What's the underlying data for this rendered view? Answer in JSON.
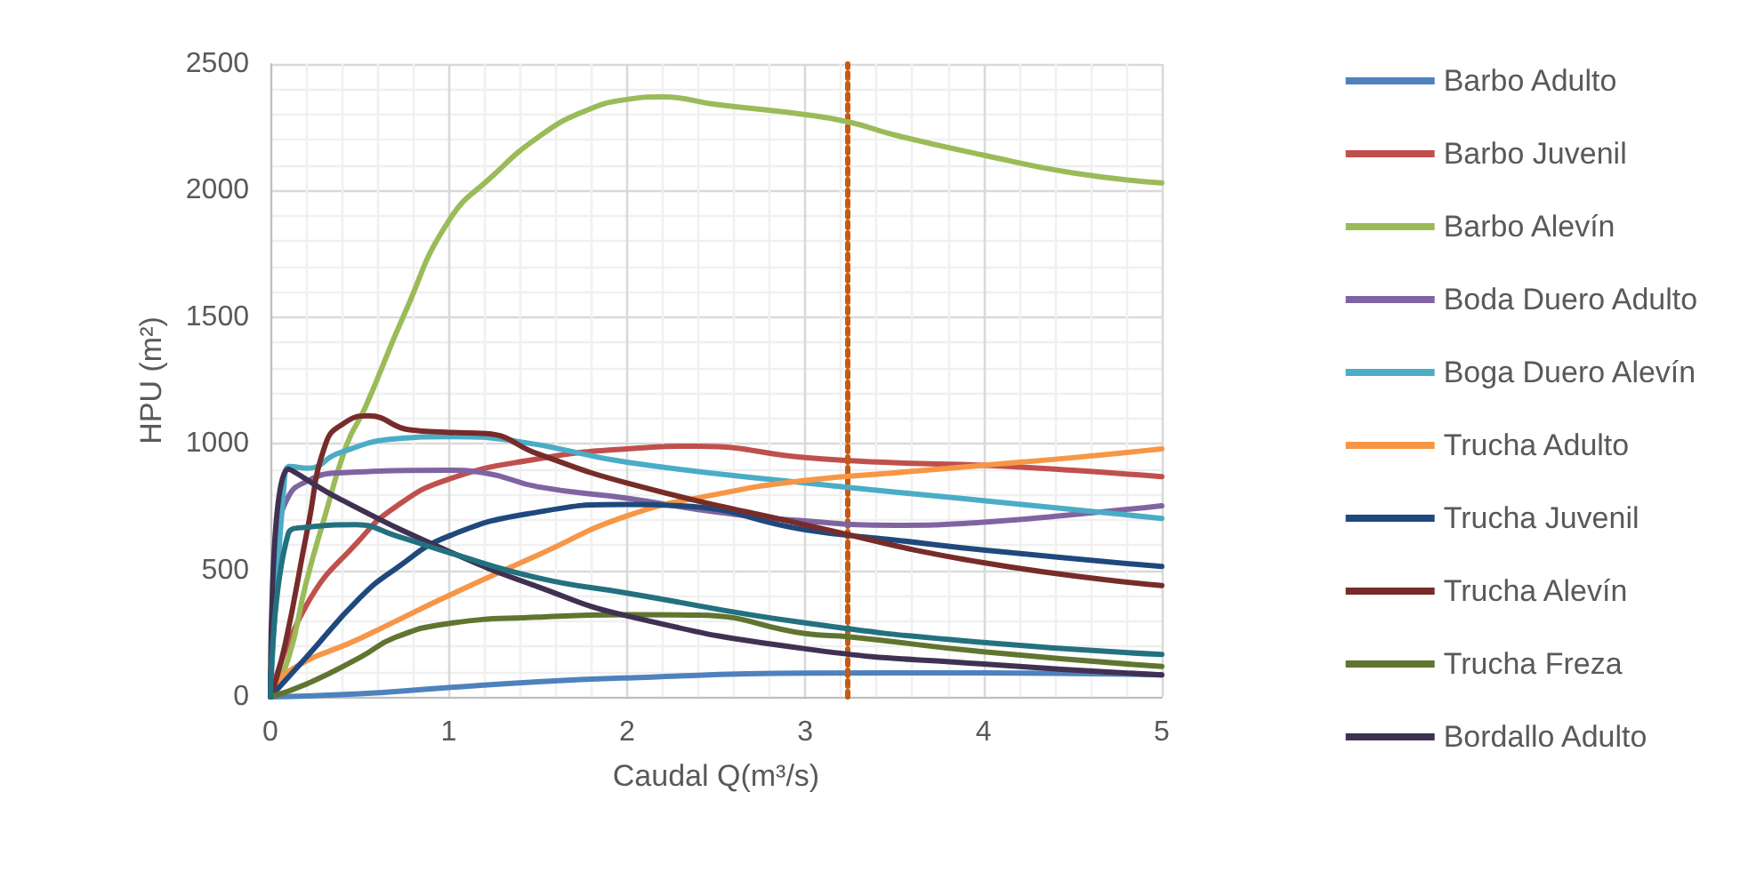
{
  "chart_data": {
    "type": "line",
    "xlabel": "Caudal Q(m³/s)",
    "ylabel": "HPU (m²)",
    "xlim": [
      0,
      5
    ],
    "xticks": [
      0,
      1,
      2,
      3,
      4,
      5
    ],
    "ylim": [
      0,
      2500
    ],
    "yticks": [
      0,
      500,
      1000,
      1500,
      2000,
      2500
    ],
    "grid": true,
    "legend": "right",
    "marker": "none",
    "line_style": "solid",
    "ref_lines": [
      {
        "axis": "x",
        "value": 3.24,
        "color": "#c55a11",
        "line_style": "dotted"
      }
    ],
    "series": [
      {
        "name": "Barbo Adulto",
        "color": "#4f81bd",
        "x": [
          0,
          0.5,
          1,
          1.5,
          2,
          3,
          4,
          5
        ],
        "values": [
          0,
          12,
          37,
          60,
          75,
          94,
          95,
          87
        ]
      },
      {
        "name": "Barbo Juvenil",
        "color": "#c0504d",
        "x": [
          0,
          0.2,
          0.5,
          0.7,
          1,
          1.5,
          2,
          2.4,
          3,
          3.5,
          4,
          4.5,
          5
        ],
        "values": [
          0,
          360,
          620,
          750,
          860,
          940,
          980,
          990,
          945,
          925,
          915,
          895,
          870
        ]
      },
      {
        "name": "Barbo Alevín",
        "color": "#9bbb59",
        "x": [
          0,
          0.1,
          0.2,
          0.3,
          0.43,
          0.53,
          0.75,
          1,
          1.25,
          1.5,
          1.75,
          2,
          2.2,
          2.5,
          3,
          3.25,
          3.5,
          4,
          4.5,
          5
        ],
        "values": [
          0,
          150,
          450,
          700,
          1000,
          1140,
          1510,
          1880,
          2060,
          2210,
          2310,
          2360,
          2370,
          2340,
          2300,
          2270,
          2220,
          2140,
          2070,
          2030
        ]
      },
      {
        "name": "Boda Duero Adulto",
        "color": "#8064a2",
        "x": [
          0,
          0.05,
          0.1,
          0.2,
          0.38,
          1,
          1.2,
          1.5,
          2,
          2.5,
          3,
          3.5,
          4,
          4.5,
          5
        ],
        "values": [
          0,
          650,
          790,
          850,
          885,
          895,
          885,
          830,
          785,
          730,
          695,
          678,
          690,
          720,
          755
        ]
      },
      {
        "name": "Boga Duero Alevín",
        "color": "#4bacc6",
        "x": [
          0,
          0.08,
          0.11,
          0.21,
          0.38,
          0.71,
          1,
          1.38,
          2,
          3,
          4,
          5
        ],
        "values": [
          0,
          870,
          910,
          903,
          962,
          1020,
          1028,
          1010,
          927,
          845,
          775,
          705
        ]
      },
      {
        "name": "Trucha Adulto",
        "color": "#f79646",
        "x": [
          0,
          0.1,
          0.5,
          1,
          1.5,
          2,
          2.5,
          3,
          3.5,
          4,
          4.5,
          5
        ],
        "values": [
          0,
          100,
          230,
          400,
          560,
          715,
          800,
          855,
          885,
          915,
          945,
          980
        ]
      },
      {
        "name": "Trucha Juvenil",
        "color": "#1f497d",
        "x": [
          0,
          0.2,
          0.5,
          0.7,
          1,
          1.5,
          2,
          2.3,
          3,
          3.5,
          4,
          5
        ],
        "values": [
          0,
          155,
          390,
          505,
          635,
          730,
          760,
          755,
          660,
          620,
          580,
          515
        ]
      },
      {
        "name": "Trucha Alevín",
        "color": "#772c2a",
        "x": [
          0,
          0.08,
          0.21,
          0.31,
          0.41,
          0.55,
          0.78,
          1,
          1.21,
          1.5,
          2,
          3,
          4,
          5
        ],
        "values": [
          0,
          200,
          670,
          1000,
          1080,
          1110,
          1055,
          1045,
          1040,
          960,
          845,
          680,
          530,
          440
        ]
      },
      {
        "name": "Trucha Freza",
        "color": "#5f7530",
        "x": [
          0,
          0.2,
          0.5,
          0.7,
          1,
          1.5,
          2,
          2.4,
          3,
          3.25,
          4,
          5
        ],
        "values": [
          0,
          50,
          155,
          235,
          290,
          315,
          325,
          323,
          250,
          237,
          178,
          120
        ]
      },
      {
        "name": "Bordallo Adulto",
        "color": "#403152",
        "x": [
          0,
          0.1,
          0.38,
          1,
          1.5,
          2,
          3,
          4,
          5
        ],
        "values": [
          0,
          900,
          785,
          575,
          435,
          320,
          190,
          130,
          87
        ]
      },
      {
        "color": "#23717f",
        "x": [
          0,
          0.1,
          0.2,
          0.48,
          0.71,
          1,
          1.5,
          2,
          3,
          4,
          5
        ],
        "values": [
          0,
          645,
          670,
          680,
          635,
          570,
          470,
          410,
          292,
          215,
          168
        ]
      }
    ]
  }
}
